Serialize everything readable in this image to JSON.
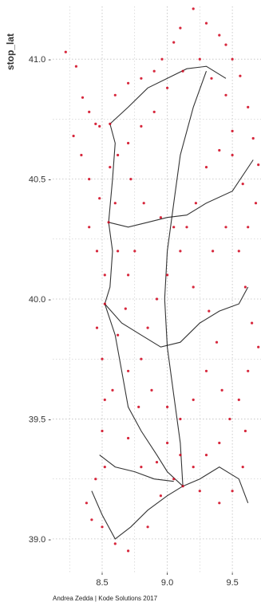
{
  "chart_data": {
    "type": "scatter",
    "x_axis_label": "",
    "y_axis_label": "stop_lat",
    "caption": "Andrea Zedda | Kode Solutions 2017",
    "x_ticks": [
      8.5,
      9.0,
      9.5
    ],
    "y_ticks": [
      39.0,
      39.5,
      40.0,
      40.5,
      41.0
    ],
    "x_tick_labels": [
      "8.5",
      "9.0",
      "9.5"
    ],
    "y_tick_labels": [
      "39.0 -",
      "39.5 -",
      "40.0 -",
      "40.5 -",
      "41.0 -"
    ],
    "xlim": [
      8.12,
      9.72
    ],
    "ylim": [
      38.86,
      41.22
    ],
    "grid": "dotted",
    "series": [
      {
        "marker": "stops",
        "color": "#d0021b",
        "points": [
          [
            8.22,
            41.03
          ],
          [
            8.3,
            40.97
          ],
          [
            8.35,
            40.84
          ],
          [
            8.4,
            40.78
          ],
          [
            8.45,
            40.73
          ],
          [
            8.48,
            40.72
          ],
          [
            8.56,
            40.73
          ],
          [
            8.6,
            40.85
          ],
          [
            8.7,
            40.9
          ],
          [
            8.8,
            40.92
          ],
          [
            8.9,
            40.95
          ],
          [
            8.96,
            41.0
          ],
          [
            9.05,
            41.07
          ],
          [
            9.1,
            41.13
          ],
          [
            9.2,
            41.21
          ],
          [
            9.3,
            41.15
          ],
          [
            9.4,
            41.1
          ],
          [
            9.45,
            41.06
          ],
          [
            9.5,
            41.0
          ],
          [
            9.56,
            40.93
          ],
          [
            9.62,
            40.8
          ],
          [
            9.66,
            40.67
          ],
          [
            9.7,
            40.56
          ],
          [
            9.68,
            40.4
          ],
          [
            9.62,
            40.3
          ],
          [
            9.55,
            40.2
          ],
          [
            9.6,
            40.05
          ],
          [
            9.65,
            39.9
          ],
          [
            9.7,
            39.8
          ],
          [
            9.62,
            39.7
          ],
          [
            9.55,
            39.58
          ],
          [
            9.6,
            39.45
          ],
          [
            9.58,
            39.3
          ],
          [
            9.5,
            39.2
          ],
          [
            9.4,
            39.15
          ],
          [
            9.25,
            39.2
          ],
          [
            9.12,
            39.22
          ],
          [
            9.05,
            39.25
          ],
          [
            8.95,
            39.18
          ],
          [
            8.85,
            39.05
          ],
          [
            8.7,
            38.95
          ],
          [
            8.6,
            38.98
          ],
          [
            8.5,
            39.05
          ],
          [
            8.42,
            39.08
          ],
          [
            8.38,
            39.15
          ],
          [
            8.45,
            39.25
          ],
          [
            8.52,
            39.3
          ],
          [
            8.5,
            39.45
          ],
          [
            8.52,
            39.58
          ],
          [
            8.5,
            39.75
          ],
          [
            8.46,
            39.88
          ],
          [
            8.52,
            39.98
          ],
          [
            8.52,
            40.1
          ],
          [
            8.46,
            40.2
          ],
          [
            8.4,
            40.3
          ],
          [
            8.48,
            40.42
          ],
          [
            8.56,
            40.55
          ],
          [
            8.72,
            40.5
          ],
          [
            8.82,
            40.4
          ],
          [
            8.95,
            40.34
          ],
          [
            9.05,
            40.3
          ],
          [
            9.1,
            40.2
          ],
          [
            9.0,
            40.1
          ],
          [
            8.92,
            40.0
          ],
          [
            8.85,
            39.88
          ],
          [
            8.8,
            39.75
          ],
          [
            8.88,
            39.62
          ],
          [
            9.0,
            39.55
          ],
          [
            9.1,
            39.5
          ],
          [
            9.2,
            39.58
          ],
          [
            9.3,
            39.7
          ],
          [
            9.38,
            39.82
          ],
          [
            9.32,
            39.95
          ],
          [
            9.2,
            40.05
          ],
          [
            9.15,
            40.3
          ],
          [
            9.22,
            40.4
          ],
          [
            9.3,
            40.55
          ],
          [
            9.4,
            40.62
          ],
          [
            9.5,
            40.7
          ],
          [
            9.45,
            40.85
          ],
          [
            9.34,
            40.92
          ],
          [
            9.25,
            41.0
          ],
          [
            9.12,
            40.95
          ],
          [
            9.0,
            40.88
          ],
          [
            8.9,
            40.78
          ],
          [
            8.8,
            40.72
          ],
          [
            8.7,
            40.65
          ],
          [
            8.62,
            40.6
          ],
          [
            8.55,
            40.32
          ],
          [
            8.62,
            40.2
          ],
          [
            8.7,
            40.1
          ],
          [
            8.68,
            39.96
          ],
          [
            8.62,
            39.85
          ],
          [
            8.7,
            39.7
          ],
          [
            8.78,
            39.55
          ],
          [
            8.7,
            39.42
          ],
          [
            8.8,
            39.3
          ],
          [
            8.92,
            39.32
          ],
          [
            9.0,
            39.4
          ],
          [
            9.1,
            39.35
          ],
          [
            9.2,
            39.3
          ],
          [
            9.3,
            39.35
          ],
          [
            9.4,
            39.4
          ],
          [
            9.48,
            39.5
          ],
          [
            9.42,
            39.62
          ],
          [
            9.35,
            40.2
          ],
          [
            9.45,
            40.3
          ],
          [
            9.58,
            40.48
          ],
          [
            9.5,
            40.6
          ],
          [
            8.34,
            40.6
          ],
          [
            8.28,
            40.68
          ],
          [
            8.4,
            40.5
          ],
          [
            8.6,
            40.4
          ],
          [
            8.75,
            40.2
          ],
          [
            8.58,
            39.62
          ]
        ]
      },
      {
        "marker": "routes",
        "color": "#111111",
        "lines": [
          [
            [
              8.56,
              40.73
            ],
            [
              8.6,
              40.65
            ],
            [
              8.58,
              40.5
            ],
            [
              8.55,
              40.32
            ],
            [
              8.58,
              40.2
            ],
            [
              8.56,
              40.05
            ],
            [
              8.52,
              39.98
            ],
            [
              8.6,
              39.85
            ],
            [
              8.65,
              39.7
            ],
            [
              8.7,
              39.55
            ],
            [
              8.8,
              39.45
            ],
            [
              8.92,
              39.35
            ],
            [
              9.0,
              39.28
            ],
            [
              9.12,
              39.22
            ]
          ],
          [
            [
              8.56,
              40.73
            ],
            [
              8.7,
              40.8
            ],
            [
              8.85,
              40.88
            ],
            [
              9.0,
              40.92
            ],
            [
              9.15,
              40.96
            ],
            [
              9.3,
              40.97
            ],
            [
              9.45,
              40.92
            ]
          ],
          [
            [
              9.12,
              39.22
            ],
            [
              9.25,
              39.25
            ],
            [
              9.4,
              39.3
            ],
            [
              9.55,
              39.25
            ],
            [
              9.62,
              39.15
            ]
          ],
          [
            [
              8.52,
              39.98
            ],
            [
              8.65,
              39.9
            ],
            [
              8.8,
              39.85
            ],
            [
              8.95,
              39.8
            ],
            [
              9.1,
              39.82
            ],
            [
              9.25,
              39.9
            ],
            [
              9.4,
              39.95
            ],
            [
              9.55,
              39.98
            ],
            [
              9.62,
              40.05
            ]
          ],
          [
            [
              8.55,
              40.32
            ],
            [
              8.7,
              40.3
            ],
            [
              8.85,
              40.32
            ],
            [
              9.0,
              40.34
            ],
            [
              9.15,
              40.35
            ],
            [
              9.3,
              40.4
            ],
            [
              9.5,
              40.45
            ],
            [
              9.66,
              40.58
            ]
          ],
          [
            [
              8.42,
              39.2
            ],
            [
              8.5,
              39.1
            ],
            [
              8.6,
              39.0
            ],
            [
              8.72,
              39.05
            ],
            [
              8.85,
              39.12
            ],
            [
              9.0,
              39.18
            ],
            [
              9.12,
              39.22
            ]
          ],
          [
            [
              8.48,
              39.35
            ],
            [
              8.6,
              39.3
            ],
            [
              8.75,
              39.28
            ],
            [
              8.9,
              39.25
            ],
            [
              9.05,
              39.24
            ]
          ],
          [
            [
              9.12,
              39.22
            ],
            [
              9.1,
              39.4
            ],
            [
              9.05,
              39.6
            ],
            [
              9.0,
              39.8
            ],
            [
              8.98,
              40.0
            ],
            [
              9.0,
              40.2
            ],
            [
              9.05,
              40.4
            ],
            [
              9.1,
              40.6
            ],
            [
              9.2,
              40.8
            ],
            [
              9.3,
              40.95
            ]
          ]
        ]
      }
    ]
  }
}
